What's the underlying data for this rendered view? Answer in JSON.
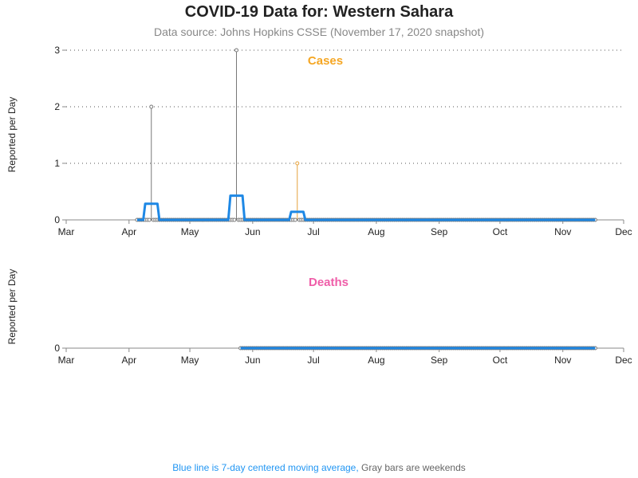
{
  "title": "COVID-19 Data for: Western Sahara",
  "subtitle": "Data source: Johns Hopkins CSSE (November 17, 2020 snapshot)",
  "footer": {
    "blue": "Blue line is 7-day centered moving average,",
    "gray": "Gray bars are weekends"
  },
  "colors": {
    "avg_line": "#1e88e5",
    "cases_title": "#f5a623",
    "deaths_title": "#ef5da8",
    "weekend_spike": "#777777",
    "weekday_spike": "#e6a23c",
    "axis": "#888888"
  },
  "chart_data": [
    {
      "type": "line",
      "panel": "Cases",
      "title": "Cases",
      "ylabel": "Reported per Day",
      "x_ticks": [
        "Mar",
        "Apr",
        "May",
        "Jun",
        "Jul",
        "Aug",
        "Sep",
        "Oct",
        "Nov",
        "Dec"
      ],
      "y_ticks": [
        0,
        1,
        2,
        3
      ],
      "ylim": [
        0,
        3
      ],
      "xlim": [
        "2020-03-01",
        "2020-12-01"
      ],
      "grid": true,
      "data_range": [
        "2020-04-05",
        "2020-11-17"
      ],
      "spikes": [
        {
          "date": "2020-04-12",
          "value": 2,
          "weekend": true
        },
        {
          "date": "2020-05-24",
          "value": 3,
          "weekend": true
        },
        {
          "date": "2020-06-23",
          "value": 1,
          "weekend": false
        }
      ],
      "moving_average": {
        "name": "7-day centered moving average",
        "window": 7
      }
    },
    {
      "type": "line",
      "panel": "Deaths",
      "title": "Deaths",
      "ylabel": "Reported per Day",
      "x_ticks": [
        "Mar",
        "Apr",
        "May",
        "Jun",
        "Jul",
        "Aug",
        "Sep",
        "Oct",
        "Nov",
        "Dec"
      ],
      "y_ticks": [
        0
      ],
      "xlim": [
        "2020-03-01",
        "2020-12-01"
      ],
      "grid": false,
      "data_range": [
        "2020-05-26",
        "2020-11-17"
      ],
      "spikes": [],
      "moving_average": {
        "name": "7-day centered moving average",
        "window": 7
      }
    }
  ]
}
